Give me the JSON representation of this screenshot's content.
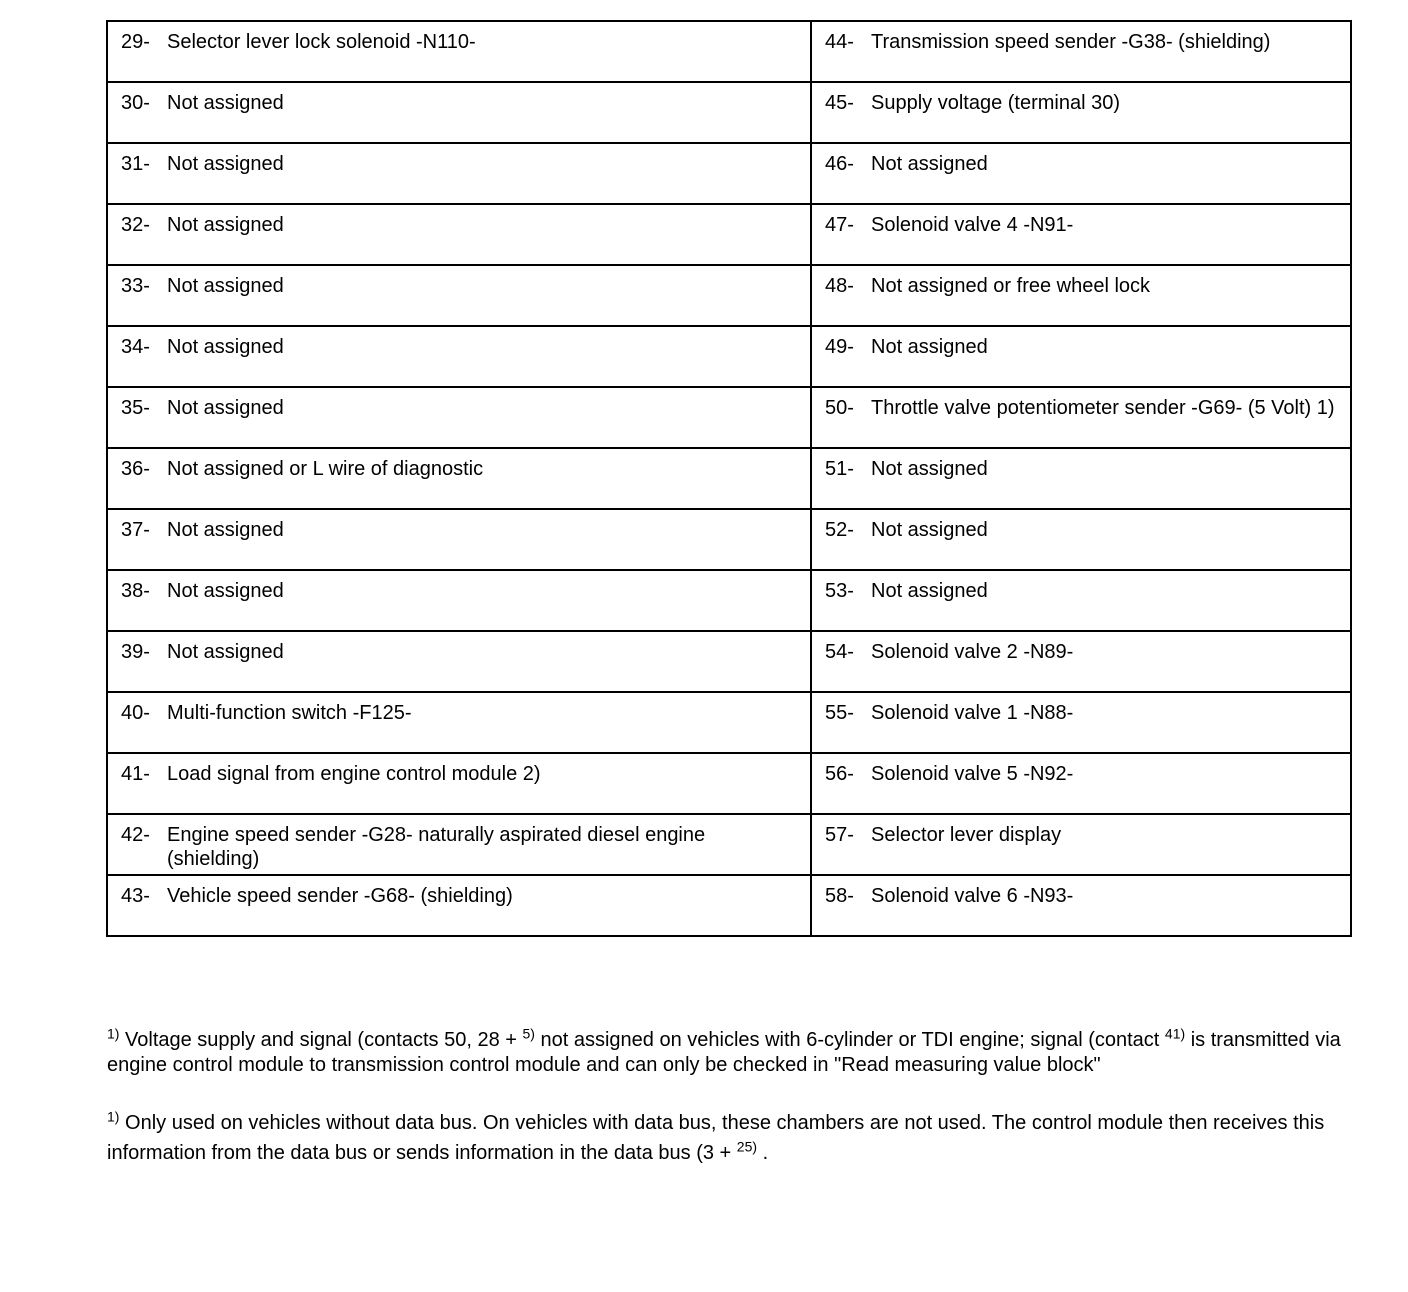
{
  "rows": [
    {
      "left": {
        "num": "29-",
        "text": "Selector lever lock solenoid -N110-"
      },
      "right": {
        "num": "44-",
        "text": "Transmission speed sender -G38- (shielding)"
      }
    },
    {
      "left": {
        "num": "30-",
        "text": "Not assigned"
      },
      "right": {
        "num": "45-",
        "text": "Supply voltage (terminal 30)"
      }
    },
    {
      "left": {
        "num": "31-",
        "text": "Not assigned"
      },
      "right": {
        "num": "46-",
        "text": "Not assigned"
      }
    },
    {
      "left": {
        "num": "32-",
        "text": "Not assigned"
      },
      "right": {
        "num": "47-",
        "text": "Solenoid valve 4 -N91-"
      }
    },
    {
      "left": {
        "num": "33-",
        "text": "Not assigned"
      },
      "right": {
        "num": "48-",
        "text": "Not assigned or free wheel lock"
      }
    },
    {
      "left": {
        "num": "34-",
        "text": "Not assigned"
      },
      "right": {
        "num": "49-",
        "text": "Not assigned"
      }
    },
    {
      "left": {
        "num": "35-",
        "text": "Not assigned"
      },
      "right": {
        "num": "50-",
        "text": "Throttle valve potentiometer sender -G69- (5 Volt) 1)"
      }
    },
    {
      "left": {
        "num": "36-",
        "text": "Not assigned or L wire of diagnostic"
      },
      "right": {
        "num": "51-",
        "text": "Not assigned"
      }
    },
    {
      "left": {
        "num": "37-",
        "text": "Not assigned"
      },
      "right": {
        "num": "52-",
        "text": "Not assigned"
      }
    },
    {
      "left": {
        "num": "38-",
        "text": "Not assigned"
      },
      "right": {
        "num": "53-",
        "text": "Not assigned"
      }
    },
    {
      "left": {
        "num": "39-",
        "text": "Not assigned"
      },
      "right": {
        "num": "54-",
        "text": "Solenoid valve 2 -N89-"
      }
    },
    {
      "left": {
        "num": "40-",
        "text": "Multi-function switch -F125-"
      },
      "right": {
        "num": "55-",
        "text": "Solenoid valve 1 -N88-"
      }
    },
    {
      "left": {
        "num": "41-",
        "text": "Load signal from engine control module 2)"
      },
      "right": {
        "num": "56-",
        "text": "Solenoid valve 5 -N92-"
      }
    },
    {
      "left": {
        "num": "42-",
        "text": "Engine speed sender -G28- naturally aspirated diesel engine (shielding)"
      },
      "right": {
        "num": "57-",
        "text": "Selector lever display"
      }
    },
    {
      "left": {
        "num": "43-",
        "text": "Vehicle speed sender -G68- (shielding)"
      },
      "right": {
        "num": "58-",
        "text": "Solenoid valve 6 -N93-"
      }
    }
  ],
  "footnotes": [
    {
      "mark": "1)",
      "parts": [
        " Voltage supply and signal (contacts 50, 28 + ",
        "5)",
        " not assigned on vehicles with 6-cylinder or TDI engine; signal (contact ",
        "41)",
        " is transmitted via engine control module to transmission control module and can only be checked in \"Read measuring value block\""
      ]
    },
    {
      "mark": "1)",
      "parts": [
        " Only used on vehicles without data bus. On vehicles with data bus, these chambers are not used. The control module then receives this information from the data bus or sends information in the data bus (3 + ",
        "25)",
        " ."
      ]
    }
  ]
}
